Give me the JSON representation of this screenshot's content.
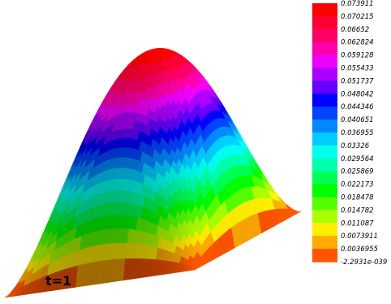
{
  "chart_data": {
    "type": "surface-3d-contour",
    "time_label": "t=1",
    "colorbar": {
      "labels": [
        "0.073911",
        "0.070215",
        "0.06652",
        "0.062824",
        "0.059128",
        "0.055433",
        "0.051737",
        "0.048042",
        "0.044346",
        "0.040651",
        "0.036955",
        "0.03326",
        "0.029564",
        "0.025869",
        "0.022173",
        "0.018478",
        "0.014782",
        "0.011087",
        "0.0073911",
        "0.0036955",
        "-2.2931e-039"
      ],
      "colors": [
        "#ff0000",
        "#ff0033",
        "#ff0066",
        "#ff00aa",
        "#ee00ff",
        "#aa00ff",
        "#6600ff",
        "#0000ff",
        "#0044ff",
        "#0088ff",
        "#00ccff",
        "#00ffee",
        "#00ffaa",
        "#00ff55",
        "#00ff00",
        "#55ff00",
        "#aaff00",
        "#ffee00",
        "#ffaa00",
        "#ff5500",
        "#ff0000"
      ]
    }
  }
}
